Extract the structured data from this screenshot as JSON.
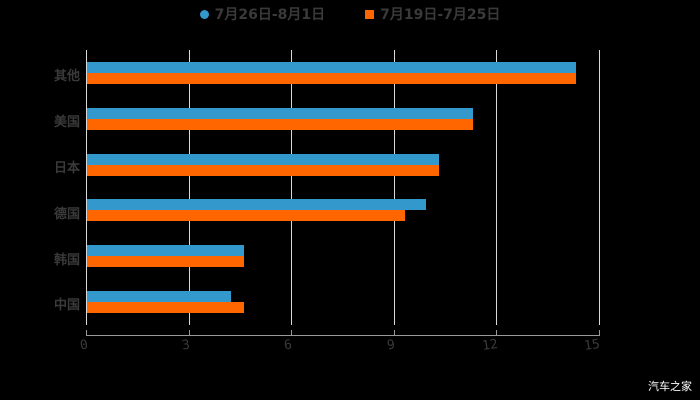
{
  "chart_data": {
    "type": "bar",
    "orientation": "horizontal",
    "title": "",
    "categories": [
      "其他",
      "美国",
      "日本",
      "德国",
      "韩国",
      "中国"
    ],
    "series": [
      {
        "name": "7月26日-8月1日",
        "color": "#3399cc",
        "values": [
          14.3,
          11.3,
          10.3,
          9.9,
          4.6,
          4.2
        ]
      },
      {
        "name": "7月19日-7月25日",
        "color": "#ff6600",
        "values": [
          14.3,
          11.3,
          10.3,
          9.3,
          4.6,
          4.6
        ]
      }
    ],
    "xlabel": "",
    "ylabel": "",
    "xlim": [
      0,
      15
    ],
    "xticks": [
      "0",
      "3",
      "6",
      "9",
      "12",
      "15"
    ],
    "grid": true,
    "legend_position": "top"
  },
  "legend": {
    "series1": "7月26日-8月1日",
    "series2": "7月19日-7月25日"
  },
  "axis": {
    "ticks": [
      "0",
      "3",
      "6",
      "9",
      "12",
      "15"
    ]
  },
  "categories": [
    "其他",
    "美国",
    "日本",
    "德国",
    "韩国",
    "中国"
  ],
  "watermark": "汽车之家"
}
